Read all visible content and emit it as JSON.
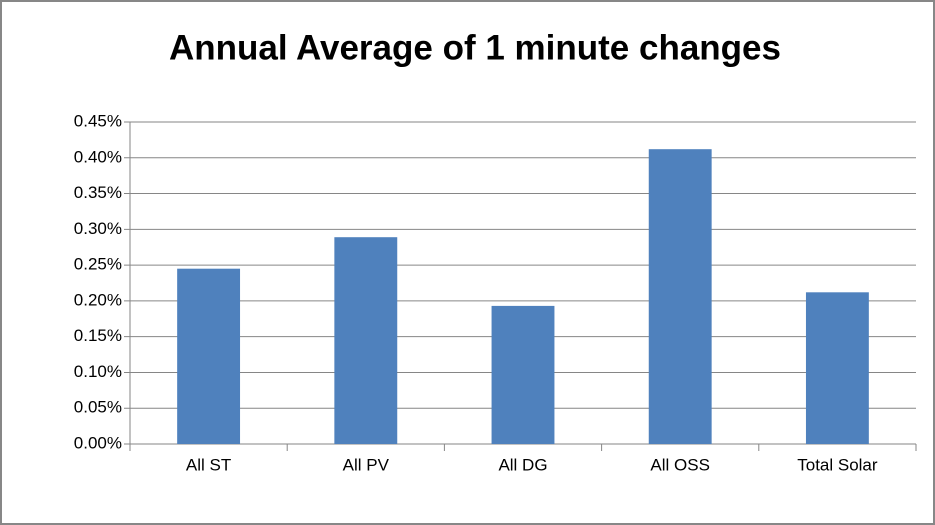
{
  "chart_data": {
    "type": "bar",
    "title": "Annual Average of 1 minute changes",
    "categories": [
      "All ST",
      "All PV",
      "All DG",
      "All OSS",
      "Total Solar"
    ],
    "values": [
      0.245,
      0.289,
      0.193,
      0.412,
      0.212
    ],
    "color": "#4f81bd",
    "ylim": [
      0,
      0.45
    ],
    "yticks": [
      {
        "value": 0,
        "label": "0.00%"
      },
      {
        "value": 0.05,
        "label": "0.05%"
      },
      {
        "value": 0.1,
        "label": "0.10%"
      },
      {
        "value": 0.15,
        "label": "0.15%"
      },
      {
        "value": 0.2,
        "label": "0.20%"
      },
      {
        "value": 0.25,
        "label": "0.25%"
      },
      {
        "value": 0.3,
        "label": "0.30%"
      },
      {
        "value": 0.35,
        "label": "0.35%"
      },
      {
        "value": 0.4,
        "label": "0.40%"
      },
      {
        "value": 0.45,
        "label": "0.45%"
      }
    ],
    "grid": true
  }
}
